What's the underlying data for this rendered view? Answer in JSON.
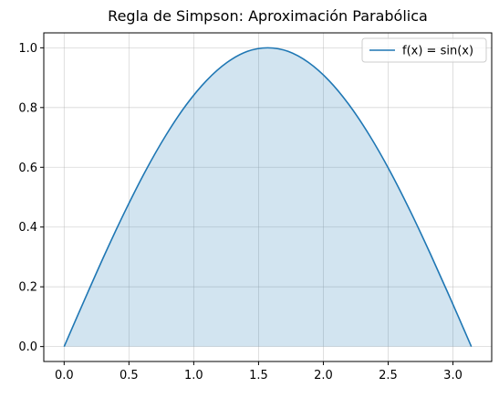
{
  "chart_data": {
    "type": "area",
    "title": "Regla de Simpson: Aproximación Parabólica",
    "xlabel": "",
    "ylabel": "",
    "xlim": [
      -0.157,
      3.299
    ],
    "ylim": [
      -0.05,
      1.05
    ],
    "x_ticks": [
      0.0,
      0.5,
      1.0,
      1.5,
      2.0,
      2.5,
      3.0
    ],
    "x_tick_labels": [
      "0.0",
      "0.5",
      "1.0",
      "1.5",
      "2.0",
      "2.5",
      "3.0"
    ],
    "y_ticks": [
      0.0,
      0.2,
      0.4,
      0.6,
      0.8,
      1.0
    ],
    "y_tick_labels": [
      "0.0",
      "0.2",
      "0.4",
      "0.6",
      "0.8",
      "1.0"
    ],
    "grid": true,
    "legend_position": "top-right",
    "series": [
      {
        "name": "f(x) = sin(x)",
        "color": "#1f77b4",
        "fill_color": "#1f77b4",
        "x": [
          0.0,
          0.157,
          0.314,
          0.471,
          0.628,
          0.785,
          0.942,
          1.1,
          1.257,
          1.414,
          1.571,
          1.728,
          1.885,
          2.042,
          2.199,
          2.356,
          2.513,
          2.67,
          2.827,
          2.985,
          3.142
        ],
        "y": [
          0.0,
          0.156,
          0.309,
          0.454,
          0.588,
          0.707,
          0.809,
          0.891,
          0.951,
          0.988,
          1.0,
          0.988,
          0.951,
          0.891,
          0.809,
          0.707,
          0.588,
          0.454,
          0.309,
          0.156,
          0.0
        ]
      }
    ]
  }
}
